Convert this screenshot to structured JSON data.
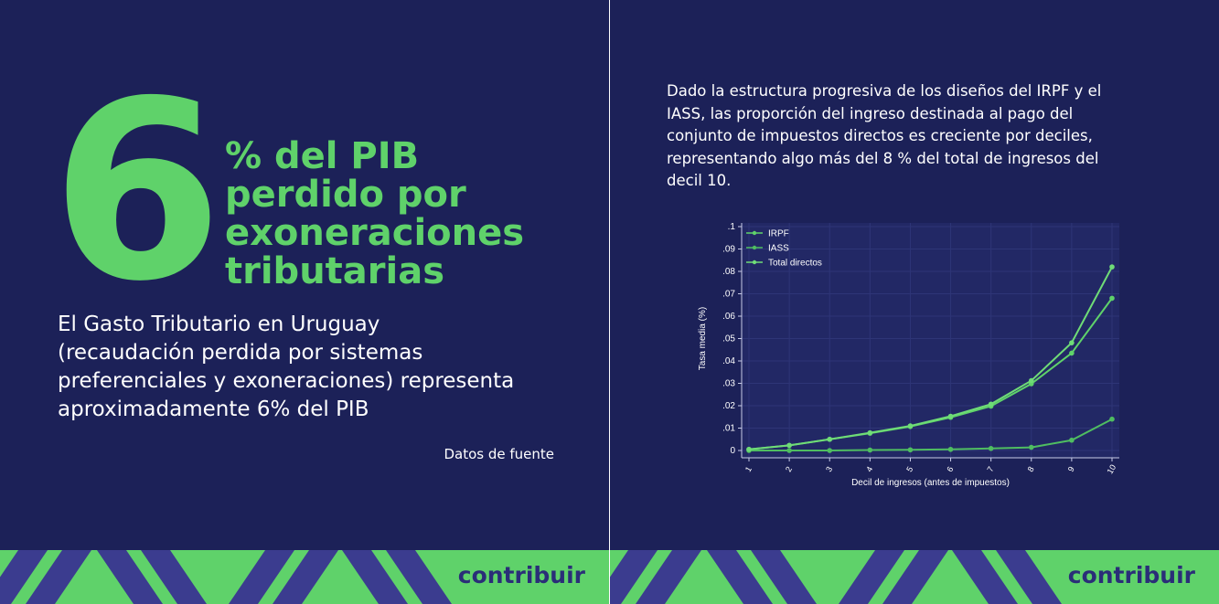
{
  "left_panel": {
    "big_number": "6",
    "headline_lines": [
      "% del PIB",
      "perdido por",
      "exoneraciones",
      "tributarias"
    ],
    "body_lines": [
      "El Gasto Tributario en Uruguay",
      "(recaudación perdida por sistemas",
      "preferenciales y exoneraciones) representa",
      "aproximadamente 6% del PIB"
    ],
    "source_link": "Datos de fuente",
    "brand": "contribuir"
  },
  "right_panel": {
    "description_lines": [
      "Dado la estructura progresiva de los diseños del IRPF y el",
      "IASS, las proporción del ingreso destinada al pago del",
      "conjunto de impuestos directos es creciente por deciles,",
      "representando algo más del 8 % del total de ingresos del",
      "decil 10."
    ],
    "brand": "contribuir"
  },
  "colors": {
    "background": "#1c2158",
    "accent_green": "#5fd26a",
    "stripe": "#3b3c8f",
    "brand_text": "#2a2e78",
    "text": "#ffffff"
  },
  "chart_data": {
    "type": "line",
    "xlabel": "Decil de ingresos (antes de impuestos)",
    "ylabel": "Tasa media (%)",
    "x": [
      1,
      2,
      3,
      4,
      5,
      6,
      7,
      8,
      9,
      10
    ],
    "x_tick_labels": [
      "1",
      "2",
      "3",
      "4",
      "5",
      "6",
      "7",
      "8",
      "9",
      "10"
    ],
    "ylim": [
      0,
      0.1
    ],
    "y_ticks": [
      0,
      0.01,
      0.02,
      0.03,
      0.04,
      0.05,
      0.06,
      0.07,
      0.08,
      0.09,
      0.1
    ],
    "y_tick_labels": [
      "0",
      ".01",
      ".02",
      ".03",
      ".04",
      ".05",
      ".06",
      ".07",
      ".08",
      ".09",
      ".1"
    ],
    "grid": true,
    "legend_position": "top-left",
    "series": [
      {
        "name": "IRPF",
        "values": [
          0.0005,
          0.0023,
          0.005,
          0.0077,
          0.0107,
          0.0148,
          0.0198,
          0.0298,
          0.0435,
          0.068
        ]
      },
      {
        "name": "IASS",
        "values": [
          0.0,
          0.0,
          0.0,
          0.0002,
          0.0003,
          0.0005,
          0.0009,
          0.0014,
          0.0046,
          0.014
        ]
      },
      {
        "name": "Total directos",
        "values": [
          0.0005,
          0.0023,
          0.005,
          0.0079,
          0.011,
          0.0153,
          0.0207,
          0.0312,
          0.0481,
          0.082
        ]
      }
    ],
    "series_colors": [
      "#5fd26a",
      "#4fbd61",
      "#6fdc77"
    ]
  }
}
